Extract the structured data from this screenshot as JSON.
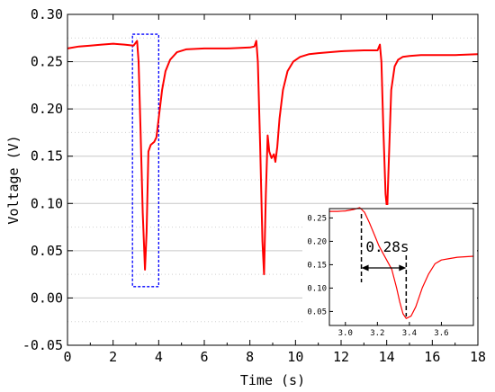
{
  "chart_data": [
    {
      "type": "line",
      "xlabel": "Time (s)",
      "ylabel": "Voltage (V)",
      "xlim": [
        0,
        18
      ],
      "ylim": [
        -0.05,
        0.3
      ],
      "xticks": [
        0,
        2,
        4,
        6,
        8,
        10,
        12,
        14,
        16,
        18
      ],
      "xtick_labels": [
        "0",
        "2",
        "4",
        "6",
        "8",
        "10",
        "12",
        "14",
        "16",
        "18"
      ],
      "yticks": [
        -0.05,
        0.0,
        0.05,
        0.1,
        0.15,
        0.2,
        0.25,
        0.3
      ],
      "ytick_labels": [
        "-0.05",
        "0.00",
        "0.05",
        "0.10",
        "0.15",
        "0.20",
        "0.25",
        "0.30"
      ],
      "grid": "horizontal dotted",
      "series_color": "#ff0000",
      "highlight_box": {
        "x": [
          2.85,
          4.0
        ],
        "y": [
          0.012,
          0.279
        ],
        "color": "#0000ff",
        "style": "dashed"
      },
      "series": [
        {
          "x": [
            0,
            0.5,
            1,
            1.5,
            2,
            2.5,
            2.9,
            3.05,
            3.12,
            3.2,
            3.3,
            3.4,
            3.47,
            3.55,
            3.65,
            3.8,
            3.9,
            4.0,
            4.15,
            4.3,
            4.5,
            4.8,
            5.2,
            6,
            7,
            8,
            8.2,
            8.28,
            8.35,
            8.45,
            8.55,
            8.62,
            8.7,
            8.78,
            8.85,
            8.95,
            9.05,
            9.12,
            9.2,
            9.3,
            9.45,
            9.65,
            9.9,
            10.2,
            10.6,
            11,
            12,
            13,
            13.6,
            13.7,
            13.77,
            13.85,
            13.95,
            14.02,
            14.1,
            14.2,
            14.35,
            14.5,
            14.7,
            15,
            15.5,
            16,
            17,
            18
          ],
          "y": [
            0.264,
            0.266,
            0.267,
            0.268,
            0.269,
            0.268,
            0.267,
            0.272,
            0.25,
            0.18,
            0.09,
            0.03,
            0.07,
            0.155,
            0.162,
            0.165,
            0.17,
            0.19,
            0.22,
            0.24,
            0.252,
            0.26,
            0.263,
            0.264,
            0.264,
            0.265,
            0.266,
            0.272,
            0.25,
            0.16,
            0.06,
            0.025,
            0.11,
            0.172,
            0.155,
            0.148,
            0.152,
            0.144,
            0.16,
            0.19,
            0.22,
            0.24,
            0.25,
            0.255,
            0.258,
            0.259,
            0.261,
            0.262,
            0.262,
            0.268,
            0.25,
            0.18,
            0.11,
            0.093,
            0.15,
            0.22,
            0.245,
            0.252,
            0.255,
            0.256,
            0.257,
            0.257,
            0.257,
            0.258
          ]
        }
      ]
    },
    {
      "type": "line",
      "inset": true,
      "xlim": [
        2.9,
        3.8
      ],
      "ylim": [
        0.02,
        0.27
      ],
      "xticks": [
        3.0,
        3.2,
        3.4,
        3.6
      ],
      "xtick_labels": [
        "3.0",
        "3.2",
        "3.4",
        "3.6"
      ],
      "yticks": [
        0.05,
        0.1,
        0.15,
        0.2,
        0.25
      ],
      "ytick_labels": [
        "0.05",
        "0.10",
        "0.15",
        "0.20",
        "0.25"
      ],
      "annotation": {
        "text": "0.28s",
        "x_start": 3.1,
        "x_end": 3.38
      },
      "series_color": "#ff0000",
      "series": [
        {
          "x": [
            2.9,
            2.95,
            3.0,
            3.05,
            3.09,
            3.12,
            3.15,
            3.18,
            3.21,
            3.25,
            3.29,
            3.32,
            3.34,
            3.36,
            3.38,
            3.41,
            3.44,
            3.48,
            3.52,
            3.56,
            3.6,
            3.65,
            3.7,
            3.8
          ],
          "y": [
            0.264,
            0.264,
            0.265,
            0.268,
            0.272,
            0.262,
            0.24,
            0.215,
            0.19,
            0.165,
            0.14,
            0.1,
            0.07,
            0.045,
            0.035,
            0.04,
            0.06,
            0.1,
            0.13,
            0.152,
            0.16,
            0.163,
            0.166,
            0.168
          ]
        }
      ]
    }
  ]
}
